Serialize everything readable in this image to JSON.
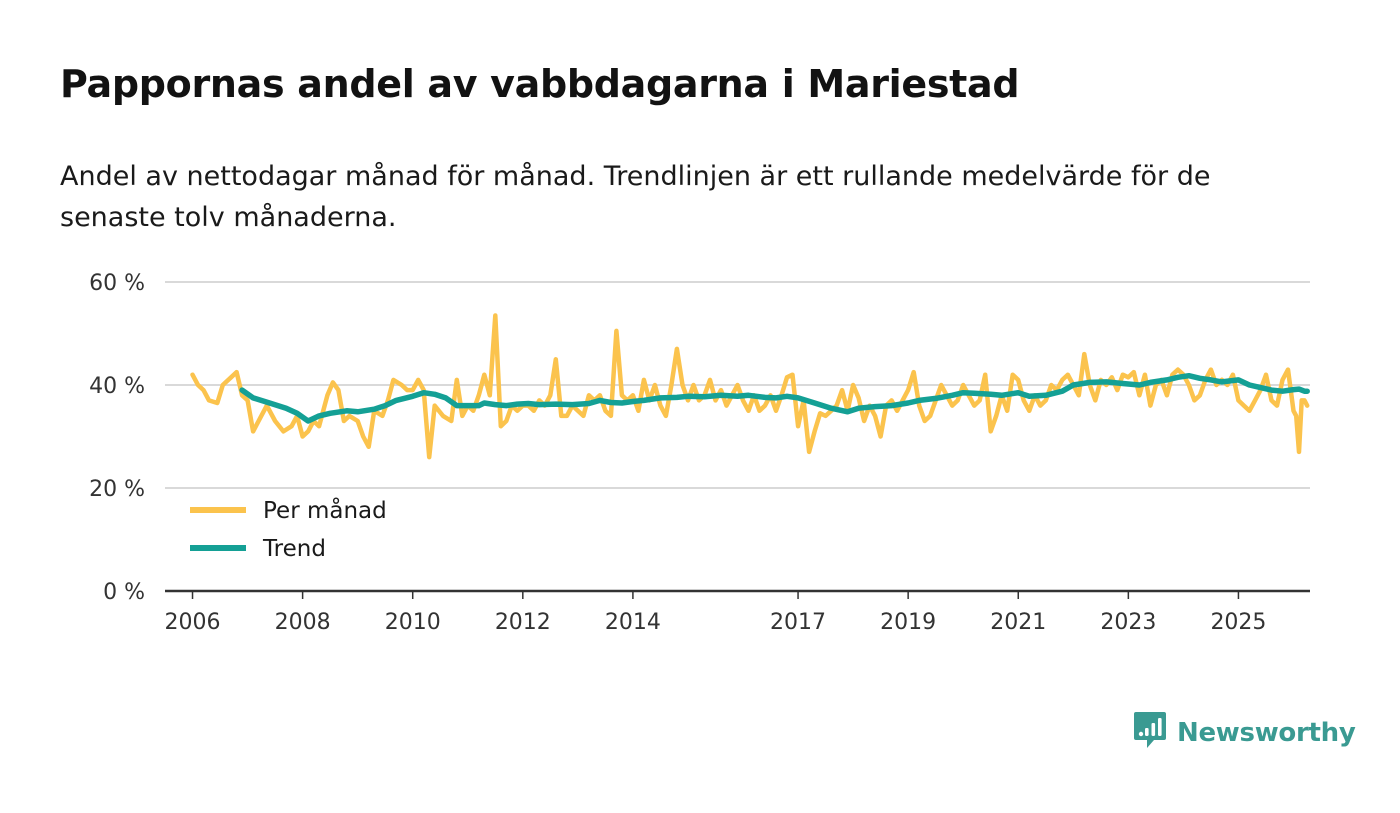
{
  "header": {
    "title": "Pappornas andel av vabbdagarna i Mariestad",
    "subtitle": "Andel av nettodagar månad för månad. Trendlinjen är ett rullande medelvärde för de senaste tolv månaderna."
  },
  "brand": {
    "name": "Newsworthy",
    "icon": "newsworthy-logo-icon",
    "color": "#3a9a92"
  },
  "chart_data": {
    "type": "line",
    "title": "Pappornas andel av vabbdagarna i Mariestad",
    "xlabel": "",
    "ylabel": "",
    "x_range": [
      2005.5,
      2026.3
    ],
    "ylim": [
      0,
      60
    ],
    "y_ticks": [
      0,
      20,
      40,
      60
    ],
    "y_tick_labels": [
      "0 %",
      "20 %",
      "40 %",
      "60 %"
    ],
    "x_ticks": [
      2006,
      2008,
      2010,
      2012,
      2014,
      2017,
      2019,
      2021,
      2023,
      2025
    ],
    "x_tick_labels": [
      "2006",
      "2008",
      "2010",
      "2012",
      "2014",
      "2017",
      "2019",
      "2021",
      "2023",
      "2025"
    ],
    "grid": true,
    "legend_position": "bottom-left",
    "series": [
      {
        "name": "Per månad",
        "color": "#fbc34d",
        "points": [
          [
            2006.0,
            42
          ],
          [
            2006.1,
            40
          ],
          [
            2006.2,
            39
          ],
          [
            2006.3,
            37
          ],
          [
            2006.45,
            36.5
          ],
          [
            2006.55,
            40
          ],
          [
            2006.7,
            41.5
          ],
          [
            2006.8,
            42.5
          ],
          [
            2006.9,
            38
          ],
          [
            2007.0,
            37
          ],
          [
            2007.1,
            31
          ],
          [
            2007.2,
            33
          ],
          [
            2007.35,
            36
          ],
          [
            2007.5,
            33
          ],
          [
            2007.65,
            31
          ],
          [
            2007.8,
            32
          ],
          [
            2007.9,
            34
          ],
          [
            2008.0,
            30
          ],
          [
            2008.1,
            31
          ],
          [
            2008.2,
            33
          ],
          [
            2008.3,
            32
          ],
          [
            2008.45,
            38
          ],
          [
            2008.55,
            40.5
          ],
          [
            2008.65,
            39
          ],
          [
            2008.75,
            33
          ],
          [
            2008.85,
            34
          ],
          [
            2009.0,
            33
          ],
          [
            2009.1,
            30
          ],
          [
            2009.2,
            28
          ],
          [
            2009.3,
            35
          ],
          [
            2009.45,
            34
          ],
          [
            2009.55,
            37
          ],
          [
            2009.65,
            41
          ],
          [
            2009.8,
            40
          ],
          [
            2009.9,
            39
          ],
          [
            2010.0,
            39
          ],
          [
            2010.1,
            41
          ],
          [
            2010.2,
            39
          ],
          [
            2010.3,
            26
          ],
          [
            2010.4,
            36
          ],
          [
            2010.55,
            34
          ],
          [
            2010.7,
            33
          ],
          [
            2010.8,
            41
          ],
          [
            2010.9,
            34
          ],
          [
            2011.0,
            36
          ],
          [
            2011.1,
            35
          ],
          [
            2011.2,
            38
          ],
          [
            2011.3,
            42
          ],
          [
            2011.4,
            38
          ],
          [
            2011.5,
            53.5
          ],
          [
            2011.6,
            32
          ],
          [
            2011.7,
            33
          ],
          [
            2011.8,
            36
          ],
          [
            2011.9,
            35
          ],
          [
            2012.0,
            36
          ],
          [
            2012.1,
            36
          ],
          [
            2012.2,
            35
          ],
          [
            2012.3,
            37
          ],
          [
            2012.4,
            36
          ],
          [
            2012.5,
            38
          ],
          [
            2012.6,
            45
          ],
          [
            2012.7,
            34
          ],
          [
            2012.8,
            34
          ],
          [
            2012.9,
            36
          ],
          [
            2013.0,
            35
          ],
          [
            2013.1,
            34
          ],
          [
            2013.2,
            38
          ],
          [
            2013.3,
            37
          ],
          [
            2013.4,
            38
          ],
          [
            2013.5,
            35
          ],
          [
            2013.6,
            34
          ],
          [
            2013.7,
            50.5
          ],
          [
            2013.8,
            38
          ],
          [
            2013.9,
            37
          ],
          [
            2014.0,
            38
          ],
          [
            2014.1,
            35
          ],
          [
            2014.2,
            41
          ],
          [
            2014.3,
            37
          ],
          [
            2014.4,
            40
          ],
          [
            2014.5,
            36
          ],
          [
            2014.6,
            34
          ],
          [
            2014.7,
            40
          ],
          [
            2014.8,
            47
          ],
          [
            2014.9,
            40
          ],
          [
            2015.0,
            37
          ],
          [
            2015.1,
            40
          ],
          [
            2015.2,
            37
          ],
          [
            2015.3,
            38
          ],
          [
            2015.4,
            41
          ],
          [
            2015.5,
            37
          ],
          [
            2015.6,
            39
          ],
          [
            2015.7,
            36
          ],
          [
            2015.8,
            38
          ],
          [
            2015.9,
            40
          ],
          [
            2016.0,
            37
          ],
          [
            2016.1,
            35
          ],
          [
            2016.2,
            38
          ],
          [
            2016.3,
            35
          ],
          [
            2016.4,
            36
          ],
          [
            2016.5,
            38
          ],
          [
            2016.6,
            35
          ],
          [
            2016.7,
            38
          ],
          [
            2016.8,
            41.5
          ],
          [
            2016.9,
            42
          ],
          [
            2017.0,
            32
          ],
          [
            2017.1,
            37
          ],
          [
            2017.2,
            27
          ],
          [
            2017.3,
            31
          ],
          [
            2017.4,
            34.5
          ],
          [
            2017.5,
            34
          ],
          [
            2017.6,
            35
          ],
          [
            2017.7,
            36
          ],
          [
            2017.8,
            39
          ],
          [
            2017.9,
            35
          ],
          [
            2018.0,
            40
          ],
          [
            2018.1,
            37.5
          ],
          [
            2018.2,
            33
          ],
          [
            2018.3,
            36
          ],
          [
            2018.4,
            34
          ],
          [
            2018.5,
            30
          ],
          [
            2018.6,
            36
          ],
          [
            2018.7,
            37
          ],
          [
            2018.8,
            35
          ],
          [
            2018.9,
            37
          ],
          [
            2019.0,
            39
          ],
          [
            2019.1,
            42.5
          ],
          [
            2019.2,
            36
          ],
          [
            2019.3,
            33
          ],
          [
            2019.4,
            34
          ],
          [
            2019.5,
            37
          ],
          [
            2019.6,
            40
          ],
          [
            2019.7,
            38
          ],
          [
            2019.8,
            36
          ],
          [
            2019.9,
            37
          ],
          [
            2020.0,
            40
          ],
          [
            2020.1,
            38
          ],
          [
            2020.2,
            36
          ],
          [
            2020.3,
            37
          ],
          [
            2020.4,
            42
          ],
          [
            2020.5,
            31
          ],
          [
            2020.6,
            34
          ],
          [
            2020.7,
            38
          ],
          [
            2020.8,
            35
          ],
          [
            2020.9,
            42
          ],
          [
            2021.0,
            41
          ],
          [
            2021.1,
            37
          ],
          [
            2021.2,
            35
          ],
          [
            2021.3,
            38
          ],
          [
            2021.4,
            36
          ],
          [
            2021.5,
            37
          ],
          [
            2021.6,
            40
          ],
          [
            2021.7,
            39
          ],
          [
            2021.8,
            41
          ],
          [
            2021.9,
            42
          ],
          [
            2022.0,
            40
          ],
          [
            2022.1,
            38
          ],
          [
            2022.2,
            46
          ],
          [
            2022.3,
            40
          ],
          [
            2022.4,
            37
          ],
          [
            2022.5,
            41
          ],
          [
            2022.6,
            40
          ],
          [
            2022.7,
            41.5
          ],
          [
            2022.8,
            39
          ],
          [
            2022.9,
            42
          ],
          [
            2023.0,
            41.5
          ],
          [
            2023.1,
            42.5
          ],
          [
            2023.2,
            38
          ],
          [
            2023.3,
            42
          ],
          [
            2023.4,
            36
          ],
          [
            2023.5,
            40
          ],
          [
            2023.6,
            41
          ],
          [
            2023.7,
            38
          ],
          [
            2023.8,
            42
          ],
          [
            2023.9,
            43
          ],
          [
            2024.0,
            42
          ],
          [
            2024.1,
            40
          ],
          [
            2024.2,
            37
          ],
          [
            2024.3,
            38
          ],
          [
            2024.4,
            41
          ],
          [
            2024.5,
            43
          ],
          [
            2024.6,
            40
          ],
          [
            2024.7,
            41
          ],
          [
            2024.8,
            40
          ],
          [
            2024.9,
            42
          ],
          [
            2025.0,
            37
          ],
          [
            2025.1,
            36
          ],
          [
            2025.2,
            35
          ],
          [
            2025.3,
            37
          ],
          [
            2025.4,
            39
          ],
          [
            2025.5,
            42
          ],
          [
            2025.6,
            37
          ],
          [
            2025.7,
            36
          ],
          [
            2025.8,
            41
          ],
          [
            2025.9,
            43
          ],
          [
            2026.0,
            35
          ],
          [
            2026.05,
            34
          ],
          [
            2026.1,
            27
          ],
          [
            2026.15,
            37
          ],
          [
            2026.2,
            37
          ],
          [
            2026.25,
            36
          ]
        ]
      },
      {
        "name": "Trend",
        "color": "#14a095",
        "points": [
          [
            2006.9,
            39
          ],
          [
            2007.1,
            37.5
          ],
          [
            2007.4,
            36.5
          ],
          [
            2007.7,
            35.5
          ],
          [
            2007.9,
            34.5
          ],
          [
            2008.1,
            33
          ],
          [
            2008.3,
            34
          ],
          [
            2008.5,
            34.5
          ],
          [
            2008.8,
            35
          ],
          [
            2009.0,
            34.8
          ],
          [
            2009.3,
            35.3
          ],
          [
            2009.5,
            36
          ],
          [
            2009.7,
            37
          ],
          [
            2010.0,
            37.8
          ],
          [
            2010.2,
            38.5
          ],
          [
            2010.4,
            38.2
          ],
          [
            2010.6,
            37.5
          ],
          [
            2010.8,
            36
          ],
          [
            2011.0,
            36
          ],
          [
            2011.2,
            36
          ],
          [
            2011.3,
            36.5
          ],
          [
            2011.5,
            36.2
          ],
          [
            2011.7,
            36
          ],
          [
            2011.9,
            36.3
          ],
          [
            2012.1,
            36.4
          ],
          [
            2012.3,
            36.2
          ],
          [
            2012.6,
            36.3
          ],
          [
            2012.9,
            36.2
          ],
          [
            2013.2,
            36.4
          ],
          [
            2013.4,
            37
          ],
          [
            2013.6,
            36.6
          ],
          [
            2013.8,
            36.5
          ],
          [
            2014.0,
            36.8
          ],
          [
            2014.2,
            37
          ],
          [
            2014.5,
            37.5
          ],
          [
            2014.8,
            37.6
          ],
          [
            2015.0,
            37.8
          ],
          [
            2015.3,
            37.7
          ],
          [
            2015.6,
            38
          ],
          [
            2015.9,
            37.8
          ],
          [
            2016.1,
            38
          ],
          [
            2016.4,
            37.6
          ],
          [
            2016.6,
            37.5
          ],
          [
            2016.8,
            37.8
          ],
          [
            2017.0,
            37.5
          ],
          [
            2017.3,
            36.5
          ],
          [
            2017.6,
            35.5
          ],
          [
            2017.9,
            34.8
          ],
          [
            2018.1,
            35.5
          ],
          [
            2018.4,
            35.8
          ],
          [
            2018.7,
            36
          ],
          [
            2019.0,
            36.5
          ],
          [
            2019.2,
            37
          ],
          [
            2019.5,
            37.4
          ],
          [
            2019.8,
            38
          ],
          [
            2020.0,
            38.5
          ],
          [
            2020.2,
            38.4
          ],
          [
            2020.5,
            38.2
          ],
          [
            2020.7,
            38
          ],
          [
            2021.0,
            38.5
          ],
          [
            2021.2,
            37.8
          ],
          [
            2021.5,
            38
          ],
          [
            2021.8,
            38.8
          ],
          [
            2022.0,
            40
          ],
          [
            2022.3,
            40.5
          ],
          [
            2022.6,
            40.6
          ],
          [
            2022.9,
            40.3
          ],
          [
            2023.2,
            40
          ],
          [
            2023.4,
            40.5
          ],
          [
            2023.7,
            41
          ],
          [
            2023.9,
            41.5
          ],
          [
            2024.1,
            41.8
          ],
          [
            2024.3,
            41.3
          ],
          [
            2024.5,
            41
          ],
          [
            2024.7,
            40.6
          ],
          [
            2025.0,
            41
          ],
          [
            2025.2,
            40
          ],
          [
            2025.4,
            39.5
          ],
          [
            2025.6,
            39
          ],
          [
            2025.8,
            38.8
          ],
          [
            2026.0,
            39.1
          ],
          [
            2026.1,
            39.2
          ],
          [
            2026.2,
            38.8
          ],
          [
            2026.25,
            38.8
          ]
        ]
      }
    ]
  }
}
